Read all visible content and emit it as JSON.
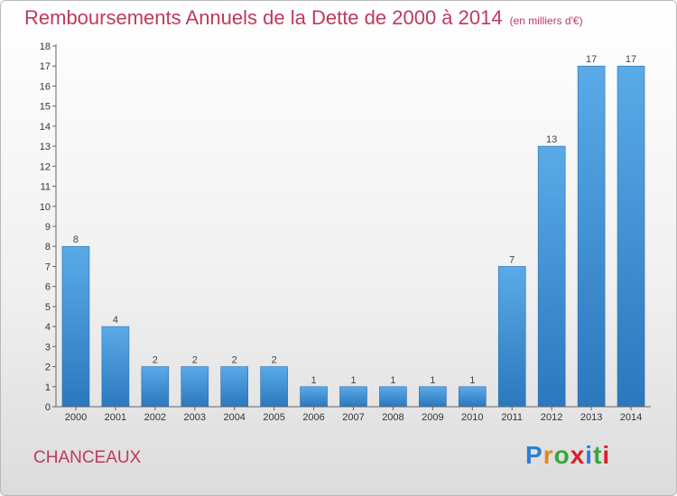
{
  "title": "Remboursements Annuels de la Dette de 2000 à 2014",
  "unit": "(en milliers d'€)",
  "commune": "CHANCEAUX",
  "logo": {
    "letters": [
      "P",
      "r",
      "o",
      "x",
      "i",
      "t",
      "i"
    ],
    "colors": [
      "#2b7fd1",
      "#e08a1e",
      "#3aa63a",
      "#d4222a",
      "#2b7fd1",
      "#3aa63a",
      "#d4222a"
    ]
  },
  "chart_data": {
    "type": "bar",
    "title": "Remboursements Annuels de la Dette de 2000 à 2014",
    "xlabel": "",
    "ylabel": "",
    "categories": [
      "2000",
      "2001",
      "2002",
      "2003",
      "2004",
      "2005",
      "2006",
      "2007",
      "2008",
      "2009",
      "2010",
      "2011",
      "2012",
      "2013",
      "2014"
    ],
    "values": [
      8,
      4,
      2,
      2,
      2,
      2,
      1,
      1,
      1,
      1,
      1,
      7,
      13,
      17,
      17
    ],
    "ylim": [
      0,
      18
    ],
    "yticks": [
      0,
      1,
      2,
      3,
      4,
      5,
      6,
      7,
      8,
      9,
      10,
      11,
      12,
      13,
      14,
      15,
      16,
      17,
      18
    ],
    "grid": false,
    "bar_color": "#3d8fd6"
  }
}
